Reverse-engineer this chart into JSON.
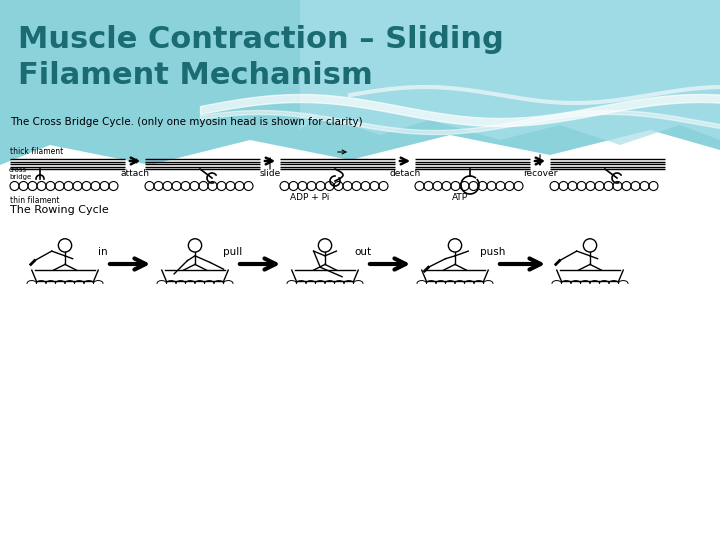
{
  "title_line1": "Muscle Contraction – Sliding",
  "title_line2": "Filament Mechanism",
  "title_color": "#1a6b72",
  "title_fontsize": 22,
  "bg_color": "#ffffff",
  "cross_bridge_label": "The Cross Bridge Cycle. (only one myosin head is shown for clarity)",
  "cross_bridge_fontsize": 7.5,
  "rowing_cycle_label": "The Rowing Cycle",
  "rowing_fontsize": 8,
  "stage_labels_cross": [
    "attach",
    "slide",
    "detach",
    "recover"
  ],
  "stage_labels_rowing": [
    "in",
    "pull",
    "out",
    "push"
  ],
  "adp_label": "ADP + Pi",
  "atp_label": "ATP",
  "thick_filament_label": "thick filament",
  "cross_bridge_text": "cross\nbridge",
  "thin_filament_label": "thin filament",
  "wave_color1": "#7ecdd8",
  "wave_color2": "#a8dfe8",
  "wave_color3": "#c5edf3"
}
